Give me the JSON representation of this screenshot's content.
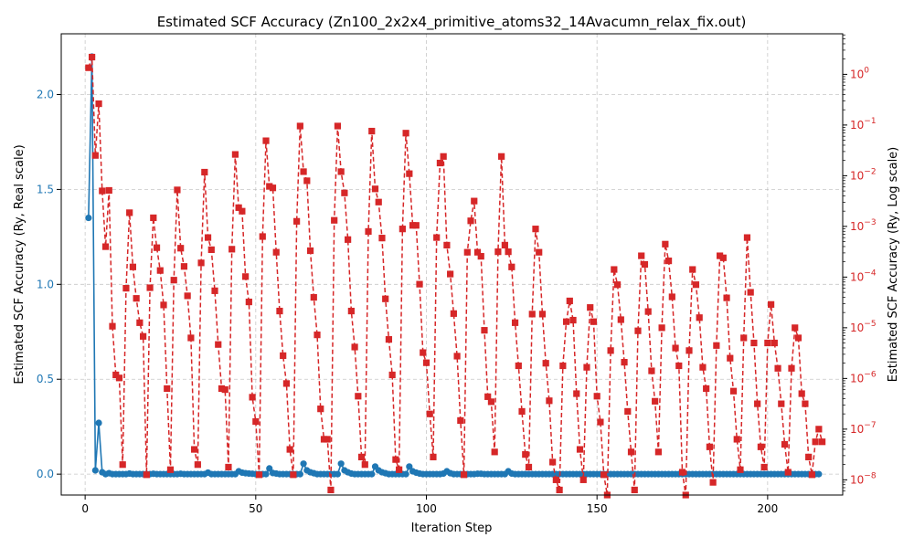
{
  "chart_data": {
    "type": "line",
    "title": "Estimated SCF Accuracy (Zn100_2x2x4_primitive_atoms32_14Avacumn_relax_fix.out)",
    "xlabel": "Iteration Step",
    "ylabel_left": "Estimated SCF Accuracy (Ry, Real scale)",
    "ylabel_right": "Estimated SCF Accuracy (Ry, Log scale)",
    "grid": true,
    "colors": {
      "left": "#1f77b4",
      "right": "#d62728",
      "grid": "#b0b0b0"
    },
    "xlim": [
      -7,
      222
    ],
    "xticks": [
      0,
      50,
      100,
      150,
      200
    ],
    "ylim_left": [
      -0.11,
      2.32
    ],
    "yticks_left": [
      0.0,
      0.5,
      1.0,
      1.5,
      2.0
    ],
    "ytick_labels_left": [
      "0.0",
      "0.5",
      "1.0",
      "1.5",
      "2.0"
    ],
    "ylim_right_log10": [
      -8.3,
      0.8
    ],
    "yticks_right_exp": [
      -8,
      -7,
      -6,
      -5,
      -4,
      -3,
      -2,
      -1,
      0
    ],
    "ytick_prefix_right": "10",
    "left_series": {
      "marker": "circle",
      "line": "solid",
      "start_step": 1,
      "values": [
        1.35,
        2.2,
        0.02,
        0.27,
        0.01,
        0.0,
        0.005,
        0.0,
        0.0,
        0.0,
        0.0,
        0.0,
        0.003,
        0.0,
        0.0,
        0.0,
        0.0,
        0.0,
        0.0,
        0.002,
        0.0,
        0.0,
        0.0,
        0.0,
        0.0,
        0.0,
        0.0,
        0.002,
        0.0,
        0.0,
        0.0,
        0.0,
        0.0,
        0.0,
        0.0,
        0.008,
        0.0,
        0.0,
        0.0,
        0.0,
        0.0,
        0.0,
        0.0,
        0.0,
        0.015,
        0.008,
        0.005,
        0.003,
        0.002,
        0.0,
        0.0,
        0.0,
        0.0,
        0.03,
        0.006,
        0.003,
        0.0,
        0.0,
        0.0,
        0.0,
        0.0,
        0.0,
        0.0,
        0.055,
        0.02,
        0.01,
        0.005,
        0.0,
        0.0,
        0.0,
        0.0,
        0.0,
        0.0,
        0.0,
        0.055,
        0.02,
        0.01,
        0.003,
        0.0,
        0.0,
        0.0,
        0.0,
        0.0,
        0.0,
        0.04,
        0.02,
        0.01,
        0.005,
        0.0,
        0.0,
        0.0,
        0.0,
        0.0,
        0.0,
        0.04,
        0.015,
        0.008,
        0.003,
        0.0,
        0.0,
        0.0,
        0.0,
        0.0,
        0.0,
        0.003,
        0.015,
        0.005,
        0.0,
        0.0,
        0.0,
        0.0,
        0.0,
        0.0,
        0.0,
        0.002,
        0.002,
        0.0,
        0.0,
        0.0,
        0.0,
        0.0,
        0.0,
        0.0,
        0.015,
        0.003,
        0.0,
        0.0,
        0.0,
        0.0,
        0.0,
        0.0,
        0.0,
        0.0,
        0.0,
        0.0,
        0.0,
        0.0,
        0.0,
        0.0,
        0.0,
        0.0,
        0.0,
        0.0,
        0.0,
        0.0,
        0.0,
        0.0,
        0.0,
        0.0,
        0.0,
        0.0,
        0.0,
        0.0,
        0.0,
        0.0,
        0.0,
        0.0,
        0.0,
        0.0,
        0.0,
        0.0,
        0.0,
        0.0,
        0.0,
        0.0,
        0.0,
        0.0,
        0.0,
        0.0,
        0.0,
        0.0,
        0.0,
        0.0,
        0.0,
        0.0,
        0.0,
        0.0,
        0.0,
        0.0,
        0.0,
        0.0,
        0.0,
        0.0,
        0.0,
        0.0,
        0.0,
        0.0,
        0.0,
        0.0,
        0.0,
        0.0,
        0.0,
        0.0,
        0.0,
        0.0,
        0.0,
        0.0,
        0.0,
        0.0,
        0.0,
        0.0,
        0.0,
        0.0,
        0.0,
        0.0,
        0.0,
        0.0,
        0.0,
        0.0,
        0.0,
        0.0,
        0.0,
        0.0,
        0.0,
        0.0
      ]
    },
    "right_series": {
      "marker": "square",
      "line": "dashed",
      "start_step": 1,
      "log10_values": [
        0.13,
        0.34,
        -1.6,
        -0.58,
        -2.3,
        -3.4,
        -2.29,
        -4.97,
        -5.93,
        -5.99,
        -7.7,
        -4.22,
        -2.73,
        -3.8,
        -4.42,
        -4.9,
        -5.17,
        -7.9,
        -4.21,
        -2.83,
        -3.42,
        -3.87,
        -4.55,
        -6.2,
        -7.8,
        -4.06,
        -2.28,
        -3.43,
        -3.79,
        -4.37,
        -5.2,
        -7.4,
        -7.7,
        -3.72,
        -1.93,
        -3.22,
        -3.46,
        -4.27,
        -5.33,
        -6.2,
        -6.22,
        -7.75,
        -3.45,
        -1.58,
        -2.63,
        -2.7,
        -3.99,
        -4.49,
        -6.37,
        -6.85,
        -7.9,
        -3.2,
        -1.31,
        -2.21,
        -2.24,
        -3.51,
        -4.67,
        -5.55,
        -6.1,
        -7.4,
        -7.9,
        -2.9,
        -1.02,
        -1.92,
        -2.1,
        -3.48,
        -4.4,
        -5.14,
        -6.6,
        -7.2,
        -7.2,
        -8.2,
        -2.88,
        -1.02,
        -1.92,
        -2.34,
        -3.26,
        -4.67,
        -5.38,
        -6.35,
        -7.55,
        -7.7,
        -3.1,
        -1.12,
        -2.26,
        -2.52,
        -3.23,
        -4.43,
        -5.23,
        -5.93,
        -7.6,
        -7.8,
        -3.05,
        -1.16,
        -1.96,
        -2.98,
        -2.98,
        -4.14,
        -5.49,
        -5.69,
        -6.7,
        -7.55,
        -3.22,
        -1.75,
        -1.62,
        -3.37,
        -3.94,
        -4.72,
        -5.56,
        -6.83,
        -7.9,
        -3.51,
        -2.89,
        -2.5,
        -3.51,
        -3.59,
        -5.05,
        -6.36,
        -6.46,
        -7.45,
        -3.5,
        -1.62,
        -3.37,
        -3.5,
        -3.8,
        -4.9,
        -5.75,
        -6.65,
        -7.5,
        -7.75,
        -4.73,
        -3.05,
        -3.51,
        -4.73,
        -5.7,
        -6.44,
        -7.65,
        -8.0,
        -8.2,
        -5.75,
        -4.88,
        -4.47,
        -4.85,
        -6.3,
        -7.4,
        -8.0,
        -5.78,
        -4.6,
        -4.88,
        -6.35,
        -6.86,
        -7.9,
        -8.3,
        -5.45,
        -3.85,
        -4.15,
        -4.84,
        -5.68,
        -6.65,
        -7.45,
        -8.2,
        -5.06,
        -3.58,
        -3.75,
        -4.68,
        -5.85,
        -6.45,
        -7.45,
        -5.0,
        -3.35,
        -3.68,
        -4.39,
        -5.4,
        -5.75,
        -7.85,
        -8.3,
        -5.45,
        -3.85,
        -4.15,
        -4.8,
        -5.78,
        -6.2,
        -7.35,
        -8.05,
        -5.35,
        -3.58,
        -3.62,
        -4.41,
        -5.6,
        -6.25,
        -7.2,
        -7.8,
        -5.2,
        -3.22,
        -4.3,
        -5.3,
        -6.5,
        -7.35,
        -7.75,
        -5.3,
        -4.54,
        -5.3,
        -5.8,
        -6.5,
        -7.3,
        -7.85,
        -5.8,
        -5.0,
        -5.2,
        -6.3,
        -6.5,
        -7.55,
        -7.9,
        -7.25,
        -7.0,
        -7.25
      ]
    }
  }
}
